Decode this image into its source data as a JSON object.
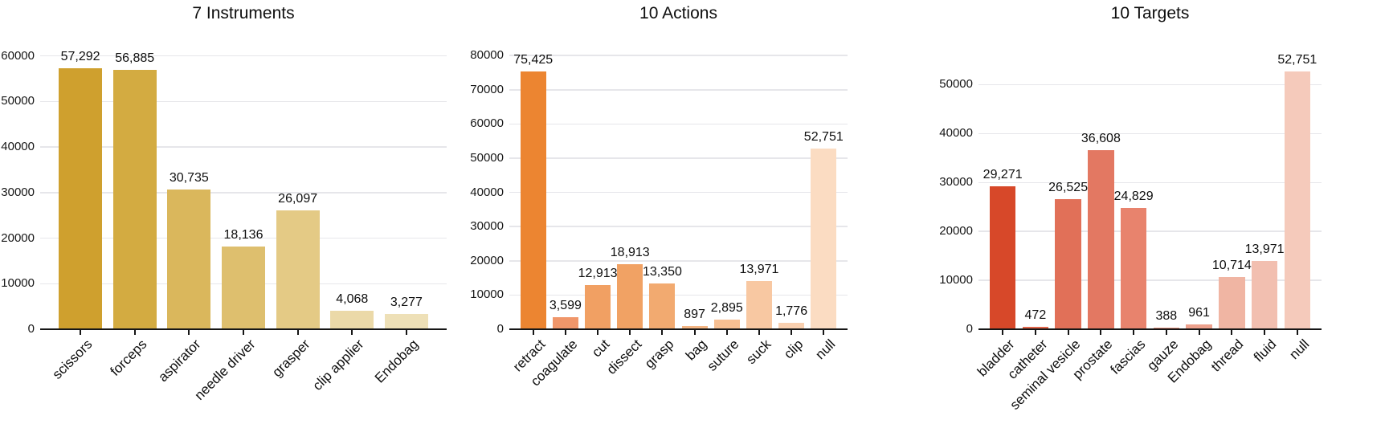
{
  "figure": {
    "background": "#ffffff",
    "text_color": "#0e0e0e",
    "grid_color": "#e6e6ea",
    "axis_color": "#161616"
  },
  "chart_data": [
    {
      "type": "bar",
      "title": "7 Instruments",
      "categories": [
        "scissors",
        "forceps",
        "aspirator",
        "needle driver",
        "grasper",
        "clip applier",
        "Endobag"
      ],
      "values": [
        57292,
        56885,
        30735,
        18136,
        26097,
        4068,
        3277
      ],
      "value_labels": [
        "57,292",
        "56,885",
        "30,735",
        "18,136",
        "26,097",
        "4,068",
        "3,277"
      ],
      "bar_colors": [
        "#cfa02e",
        "#d3ab41",
        "#dab75c",
        "#debf6e",
        "#e4ca85",
        "#ebd9a8",
        "#eee0b7"
      ],
      "xlabel": "",
      "ylabel": "",
      "yticks": [
        0,
        10000,
        20000,
        30000,
        40000,
        50000,
        60000
      ],
      "ylim": [
        0,
        64000
      ],
      "grid": true,
      "legend": null
    },
    {
      "type": "bar",
      "title": "10 Actions",
      "categories": [
        "retract",
        "coagulate",
        "cut",
        "dissect",
        "grasp",
        "bag",
        "suture",
        "suck",
        "clip",
        "null"
      ],
      "values": [
        75425,
        3599,
        12913,
        18913,
        13350,
        897,
        2895,
        13971,
        1776,
        52751
      ],
      "value_labels": [
        "75,425",
        "3,599",
        "12,913",
        "18,913",
        "13,350",
        "897",
        "2,895",
        "13,971",
        "1,776",
        "52,751"
      ],
      "bar_colors": [
        "#ec8531",
        "#f0966a",
        "#f1a063",
        "#f1a264",
        "#f2aa70",
        "#f4b583",
        "#f6bf92",
        "#f8c8a2",
        "#f9d0b0",
        "#fbdcc2"
      ],
      "xlabel": "",
      "ylabel": "",
      "yticks": [
        0,
        10000,
        20000,
        30000,
        40000,
        50000,
        60000,
        70000,
        80000
      ],
      "ylim": [
        0,
        85200
      ],
      "grid": true,
      "legend": null
    },
    {
      "type": "bar",
      "title": "10 Targets",
      "categories": [
        "bladder",
        "catheter",
        "seminal vesicle",
        "prostate",
        "fascias",
        "gauze",
        "Endobag",
        "thread",
        "fluid",
        "null"
      ],
      "values": [
        29271,
        472,
        26525,
        36608,
        24829,
        388,
        961,
        10714,
        13971,
        52751
      ],
      "value_labels": [
        "29,271",
        "472",
        "26,525",
        "36,608",
        "24,829",
        "388",
        "961",
        "10,714",
        "13,971",
        "52,751"
      ],
      "bar_colors": [
        "#d74829",
        "#e2654a",
        "#e17058",
        "#e37862",
        "#e8836d",
        "#ea9480",
        "#eda18d",
        "#f0b5a3",
        "#f2bfb0",
        "#f5cabb"
      ],
      "xlabel": "",
      "ylabel": "",
      "yticks": [
        0,
        10000,
        20000,
        30000,
        40000,
        50000
      ],
      "ylim": [
        0,
        59600
      ],
      "grid": true,
      "legend": null
    }
  ]
}
